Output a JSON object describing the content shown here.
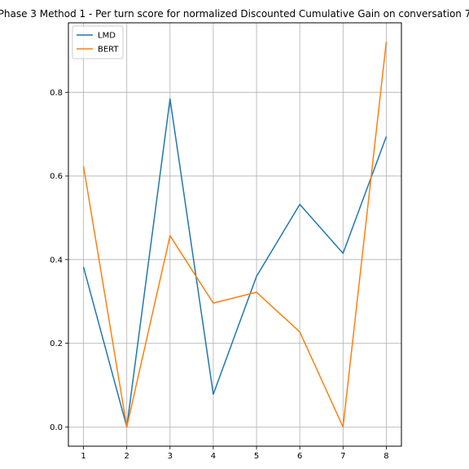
{
  "chart_data": {
    "type": "line",
    "title": "Phase 3 Method 1 - Per turn score for normalized Discounted Cumulative Gain on conversation 7",
    "xlabel": "",
    "ylabel": "",
    "x": [
      1,
      2,
      3,
      4,
      5,
      6,
      7,
      8
    ],
    "xticks": [
      "1",
      "2",
      "3",
      "4",
      "5",
      "6",
      "7",
      "8"
    ],
    "yticks": [
      "0.0",
      "0.2",
      "0.4",
      "0.6",
      "0.8"
    ],
    "xlim": [
      0.65,
      8.35
    ],
    "ylim": [
      -0.046,
      0.966
    ],
    "grid": true,
    "legend_position": "top-left",
    "series": [
      {
        "name": "LMD",
        "color": "#1f77b4",
        "values": [
          0.382,
          0.0,
          0.784,
          0.078,
          0.36,
          0.532,
          0.415,
          0.694
        ]
      },
      {
        "name": "BERT",
        "color": "#ff7f0e",
        "values": [
          0.623,
          0.0,
          0.457,
          0.296,
          0.322,
          0.227,
          0.0,
          0.92
        ]
      }
    ]
  }
}
